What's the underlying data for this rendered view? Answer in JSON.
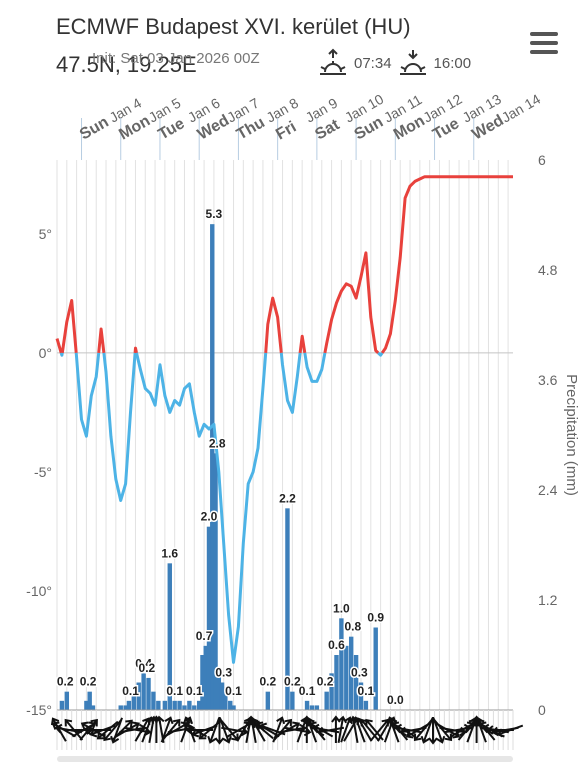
{
  "header": {
    "title": "ECMWF Budapest XVI. kerület (HU)",
    "coords": "47.5N, 19.25E",
    "init": "Init: Sat 03 Jan 2026 00Z",
    "sunrise": "07:34",
    "sunset": "16:00",
    "sunrise_icon": "sunrise-icon",
    "sunset_icon": "sunset-icon",
    "menu_icon": "hamburger-menu-icon"
  },
  "chart_data": {
    "type": "bar",
    "top_axis": [
      {
        "day": "Sun",
        "date": "Jan 4"
      },
      {
        "day": "Mon",
        "date": "Jan 5"
      },
      {
        "day": "Tue",
        "date": "Jan 6"
      },
      {
        "day": "Wed",
        "date": "Jan 7"
      },
      {
        "day": "Thu",
        "date": "Jan 8"
      },
      {
        "day": "Fri",
        "date": "Jan 9"
      },
      {
        "day": "Sat",
        "date": "Jan 10"
      },
      {
        "day": "Sun",
        "date": "Jan 11"
      },
      {
        "day": "Mon",
        "date": "Jan 12"
      },
      {
        "day": "Tue",
        "date": "Jan 13"
      },
      {
        "day": "Wed",
        "date": "Jan 14"
      }
    ],
    "left_axis": {
      "ticks": [
        "5°",
        "0°",
        "-5°",
        "-10°",
        "-15°"
      ],
      "values": [
        5,
        0,
        -5,
        -10,
        -15
      ],
      "range": [
        -15,
        8.1
      ]
    },
    "right_axis": {
      "label": "Precipitation (mm)",
      "ticks": [
        "0",
        "1.2",
        "2.4",
        "3.6",
        "4.8",
        "6"
      ],
      "values": [
        0,
        1.2,
        2.4,
        3.6,
        4.8,
        6
      ],
      "range": [
        0,
        6
      ]
    },
    "x_range_hours": [
      0,
      279
    ],
    "colors": {
      "warm": "#e8413c",
      "cold": "#4db3e6",
      "bars": "#3d7fba",
      "grid": "#e2e2e2",
      "zero": "#c4c4c4"
    },
    "temperature": {
      "hours": [
        0,
        3,
        6,
        9,
        12,
        15,
        18,
        21,
        24,
        27,
        30,
        33,
        36,
        39,
        42,
        45,
        48,
        51,
        54,
        57,
        60,
        63,
        66,
        69,
        72,
        75,
        78,
        81,
        84,
        87,
        90,
        93,
        96,
        99,
        102,
        105,
        108,
        111,
        114,
        117,
        120,
        123,
        126,
        129,
        132,
        135,
        138,
        141,
        144,
        147,
        150,
        153,
        156,
        159,
        162,
        165,
        168,
        171,
        174,
        177,
        180,
        183,
        186,
        189,
        192,
        195,
        198,
        201,
        204,
        207,
        210,
        213,
        216,
        219,
        222,
        225,
        228,
        231,
        234,
        237,
        240,
        243,
        246,
        249,
        252,
        255,
        258,
        261,
        264,
        267,
        270,
        273,
        276,
        279
      ],
      "values": [
        0.6,
        -0.1,
        1.3,
        2.2,
        -0.2,
        -2.8,
        -3.5,
        -1.8,
        -1.0,
        1.0,
        -0.8,
        -3.5,
        -5.3,
        -6.2,
        -5.5,
        -2.5,
        0.2,
        -0.7,
        -1.5,
        -1.7,
        -2.2,
        -0.5,
        -1.8,
        -2.5,
        -2.0,
        -2.2,
        -1.5,
        -1.3,
        -2.5,
        -3.5,
        -3.0,
        -3.2,
        -3.0,
        -5.0,
        -8.0,
        -11.0,
        -13.0,
        -11.5,
        -8.0,
        -5.5,
        -5.0,
        -4.0,
        -1.5,
        1.2,
        2.3,
        1.5,
        -0.5,
        -2.0,
        -2.5,
        -1.0,
        0.7,
        -0.6,
        -1.2,
        -1.2,
        -0.7,
        0.4,
        1.4,
        2.1,
        2.6,
        2.9,
        2.8,
        2.3,
        3.2,
        4.2,
        1.5,
        0.1,
        -0.1,
        0.2,
        0.8,
        2.2,
        4.0,
        6.5,
        7.0,
        7.2,
        7.3,
        7.4,
        7.4,
        7.4,
        7.4,
        7.4,
        7.4,
        7.4,
        7.4,
        7.4,
        7.4,
        7.4,
        7.4,
        7.4,
        7.4,
        7.4,
        7.4,
        7.4,
        7.4,
        7.4
      ]
    },
    "precipitation": [
      {
        "h": 3,
        "v": 0.1
      },
      {
        "h": 6,
        "v": 0.2
      },
      {
        "h": 18,
        "v": 0.1
      },
      {
        "h": 20,
        "v": 0.2
      },
      {
        "h": 22,
        "v": 0.05
      },
      {
        "h": 39,
        "v": 0.05
      },
      {
        "h": 42,
        "v": 0.05
      },
      {
        "h": 44,
        "v": 0.1
      },
      {
        "h": 47,
        "v": 0.15
      },
      {
        "h": 50,
        "v": 0.3
      },
      {
        "h": 53,
        "v": 0.4
      },
      {
        "h": 56,
        "v": 0.35
      },
      {
        "h": 59,
        "v": 0.2
      },
      {
        "h": 62,
        "v": 0.1
      },
      {
        "h": 66,
        "v": 0.1
      },
      {
        "h": 69,
        "v": 1.6
      },
      {
        "h": 72,
        "v": 0.1
      },
      {
        "h": 75,
        "v": 0.1
      },
      {
        "h": 78,
        "v": 0.05
      },
      {
        "h": 81,
        "v": 0.1
      },
      {
        "h": 84,
        "v": 0.05
      },
      {
        "h": 87,
        "v": 0.1
      },
      {
        "h": 89,
        "v": 0.6
      },
      {
        "h": 91,
        "v": 0.7
      },
      {
        "h": 93,
        "v": 2.0
      },
      {
        "h": 95,
        "v": 5.3
      },
      {
        "h": 97,
        "v": 2.8
      },
      {
        "h": 99,
        "v": 0.4
      },
      {
        "h": 101,
        "v": 0.3
      },
      {
        "h": 103,
        "v": 0.2
      },
      {
        "h": 106,
        "v": 0.1
      },
      {
        "h": 108,
        "v": 0.05
      },
      {
        "h": 129,
        "v": 0.2
      },
      {
        "h": 141,
        "v": 2.2
      },
      {
        "h": 144,
        "v": 0.2
      },
      {
        "h": 153,
        "v": 0.1
      },
      {
        "h": 156,
        "v": 0.05
      },
      {
        "h": 159,
        "v": 0.05
      },
      {
        "h": 165,
        "v": 0.2
      },
      {
        "h": 168,
        "v": 0.4
      },
      {
        "h": 171,
        "v": 0.6
      },
      {
        "h": 174,
        "v": 1.0
      },
      {
        "h": 177,
        "v": 0.7
      },
      {
        "h": 180,
        "v": 0.8
      },
      {
        "h": 183,
        "v": 0.6
      },
      {
        "h": 186,
        "v": 0.3
      },
      {
        "h": 189,
        "v": 0.1
      },
      {
        "h": 195,
        "v": 0.9
      }
    ],
    "labels": [
      {
        "h": 5,
        "text": "0.2"
      },
      {
        "h": 19,
        "text": "0.2"
      },
      {
        "h": 45,
        "text": "0.1"
      },
      {
        "h": 53,
        "text": "0.4"
      },
      {
        "h": 55,
        "text": "0.2"
      },
      {
        "h": 69,
        "text": "1.6"
      },
      {
        "h": 72,
        "text": "0.1"
      },
      {
        "h": 84,
        "text": "0.1"
      },
      {
        "h": 90,
        "text": "0.7"
      },
      {
        "h": 93,
        "text": "2.0"
      },
      {
        "h": 96,
        "text": "5.3"
      },
      {
        "h": 98,
        "text": "2.8"
      },
      {
        "h": 102,
        "text": "0.3"
      },
      {
        "h": 108,
        "text": "0.1"
      },
      {
        "h": 129,
        "text": "0.2"
      },
      {
        "h": 141,
        "text": "2.2"
      },
      {
        "h": 144,
        "text": "0.2"
      },
      {
        "h": 153,
        "text": "0.1"
      },
      {
        "h": 164,
        "text": "0.2"
      },
      {
        "h": 171,
        "text": "0.6"
      },
      {
        "h": 174,
        "text": "1.0"
      },
      {
        "h": 181,
        "text": "0.8"
      },
      {
        "h": 185,
        "text": "0.3"
      },
      {
        "h": 189,
        "text": "0.1"
      },
      {
        "h": 195,
        "text": "0.9"
      },
      {
        "h": 207,
        "text": "0.0"
      }
    ],
    "wind_directions_deg": [
      330,
      300,
      280,
      320,
      90,
      60,
      40,
      300,
      270,
      250,
      230,
      220,
      200,
      45,
      60,
      80,
      100,
      30,
      20,
      10,
      0,
      350,
      20,
      40,
      60,
      80,
      20,
      340,
      300,
      270,
      250,
      230,
      200,
      180,
      160,
      140,
      100,
      60,
      30,
      10,
      350,
      330,
      310,
      300,
      290,
      20,
      40,
      60,
      80,
      100,
      20,
      0,
      340,
      320,
      300,
      280,
      260,
      0,
      10,
      20,
      30,
      350,
      340,
      330,
      320,
      320,
      40,
      30,
      20,
      340,
      320,
      300,
      280,
      260,
      240,
      220,
      200,
      180,
      160,
      140,
      120,
      100,
      80,
      60,
      40,
      20,
      0,
      340,
      320,
      300,
      280,
      270,
      260,
      250
    ]
  }
}
